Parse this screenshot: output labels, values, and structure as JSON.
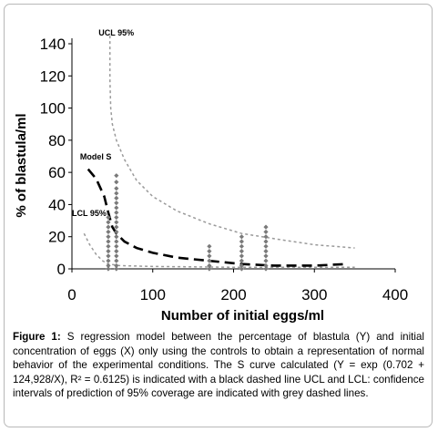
{
  "chart_data": {
    "type": "scatter",
    "xlabel": "Number of initial eggs/ml",
    "ylabel": "% of blastula/ml",
    "xlim": [
      0,
      400
    ],
    "ylim": [
      0,
      140
    ],
    "xticks": [
      0,
      100,
      200,
      300,
      400
    ],
    "yticks": [
      0,
      20,
      40,
      60,
      80,
      100,
      120,
      140
    ],
    "grid": false,
    "annotations": [
      {
        "text": "UCL 95%",
        "x": 33,
        "y": 145
      },
      {
        "text": "Model S",
        "x": 10,
        "y": 68
      },
      {
        "text": "LCL 95%",
        "x": 0,
        "y": 33
      }
    ],
    "observed_x": [
      45,
      55,
      170,
      210,
      240
    ],
    "observed": [
      {
        "x": 45,
        "y": [
          0,
          2,
          5,
          8,
          11,
          14,
          17,
          20,
          23,
          26,
          29,
          32
        ]
      },
      {
        "x": 55,
        "y": [
          0,
          2,
          5,
          8,
          11,
          14,
          17,
          20,
          23,
          26,
          29,
          32,
          35,
          38,
          41,
          44,
          47,
          50,
          54,
          58
        ]
      },
      {
        "x": 170,
        "y": [
          0,
          2,
          5,
          8,
          11,
          14
        ]
      },
      {
        "x": 210,
        "y": [
          0,
          2,
          5,
          8,
          11,
          14,
          17,
          20
        ]
      },
      {
        "x": 240,
        "y": [
          0,
          2,
          5,
          8,
          11,
          14,
          17,
          20,
          23,
          26
        ]
      }
    ],
    "model_s": {
      "x": [
        20,
        30,
        40,
        45,
        50,
        55,
        65,
        80,
        100,
        130,
        170,
        210,
        250,
        300,
        340
      ],
      "y": [
        62,
        56,
        45,
        35,
        26,
        22,
        17,
        13,
        10,
        7,
        5,
        3,
        2,
        2,
        3
      ]
    },
    "ucl_95": {
      "x": [
        47,
        47,
        48,
        50,
        55,
        65,
        80,
        100,
        130,
        170,
        210,
        260,
        300,
        350
      ],
      "y": [
        145,
        118,
        100,
        90,
        80,
        68,
        55,
        45,
        36,
        28,
        22,
        18,
        15,
        13
      ]
    },
    "lcl_95": {
      "x": [
        15,
        22,
        30,
        38,
        45,
        60,
        100,
        200,
        300,
        350
      ],
      "y": [
        22,
        15,
        9,
        5,
        3,
        2,
        1.5,
        1,
        1,
        1
      ]
    }
  },
  "caption": {
    "label": "Figure 1:",
    "text": " S regression model between the percentage of blastula (Y) and initial concentration of eggs (X) only using the controls to obtain a representation of normal behavior of the experimental conditions. The S curve calculated (Y = exp (0.702 + 124,928/X), R² = 0.6125) is indicated with a black dashed line UCL and LCL: confidence intervals of prediction of 95% coverage are indicated with grey dashed lines."
  },
  "colors": {
    "points": "#7a7a7a",
    "model": "#000000",
    "confidence": "#9a9a9a",
    "axis": "#000000",
    "frame": "#b8b8b8"
  }
}
